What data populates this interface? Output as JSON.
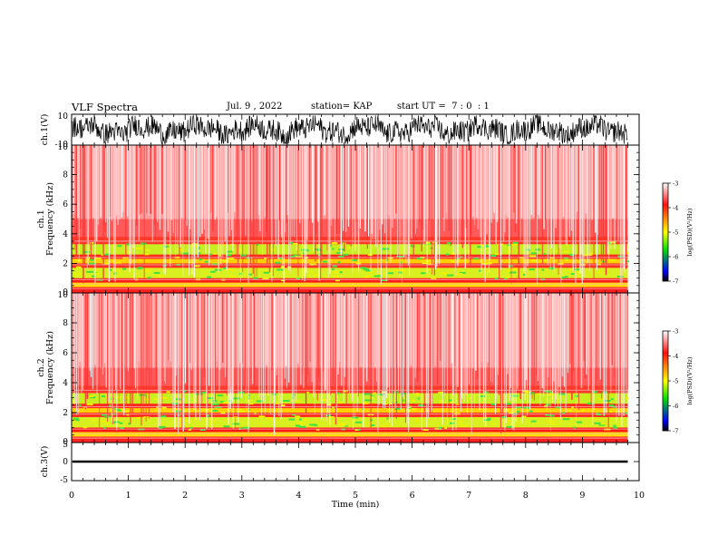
{
  "header": {
    "title": "VLF Spectra",
    "date": "Jul. 9 , 2022",
    "station": "station= KAP",
    "start": "start UT =  7 : 0  : 1"
  },
  "chart_data": [
    {
      "type": "line",
      "name": "ch1-waveform",
      "ylabel": "ch.1(V)",
      "ylim": [
        -10,
        10
      ],
      "yticks": [
        "10",
        "-10"
      ],
      "xlim": [
        0,
        10
      ]
    },
    {
      "type": "heatmap",
      "name": "ch1-spectrogram",
      "ylabel": "Frequency (kHz)",
      "channel_label": "ch.1",
      "ylim": [
        0,
        10
      ],
      "yticks": [
        "0",
        "2",
        "4",
        "6",
        "8",
        "10"
      ],
      "xlim": [
        0,
        10
      ],
      "data_extent_min": 9.8,
      "colorbar": {
        "label": "log(PSD)(V²/Hz)",
        "range": [
          -7,
          -3
        ],
        "ticks": [
          "-3",
          "-4",
          "-5",
          "-6",
          "-7"
        ],
        "colors": [
          "#ffffff",
          "#ff0000",
          "#ffff00",
          "#00ff00",
          "#0000ff",
          "#000000"
        ]
      }
    },
    {
      "type": "heatmap",
      "name": "ch2-spectrogram",
      "ylabel": "Frequency (kHz)",
      "channel_label": "ch.2",
      "ylim": [
        0,
        10
      ],
      "yticks": [
        "0",
        "2",
        "4",
        "6",
        "8",
        "10"
      ],
      "xlim": [
        0,
        10
      ],
      "data_extent_min": 9.8,
      "colorbar": {
        "label": "log(PSD)(V²/Hz)",
        "range": [
          -7,
          -3
        ],
        "ticks": [
          "-3",
          "-4",
          "-5",
          "-6",
          "-7"
        ],
        "colors": [
          "#ffffff",
          "#ff0000",
          "#ffff00",
          "#00ff00",
          "#0000ff",
          "#000000"
        ]
      }
    },
    {
      "type": "line",
      "name": "ch3-waveform",
      "ylabel": "ch.3(V)",
      "ylim": [
        -5,
        5
      ],
      "yticks": [
        "5",
        "0",
        "-5"
      ],
      "xlim": [
        0,
        10
      ],
      "xlabel": "Time (min)",
      "xticks": [
        "0",
        "1",
        "2",
        "3",
        "4",
        "5",
        "6",
        "7",
        "8",
        "9",
        "10"
      ]
    }
  ]
}
